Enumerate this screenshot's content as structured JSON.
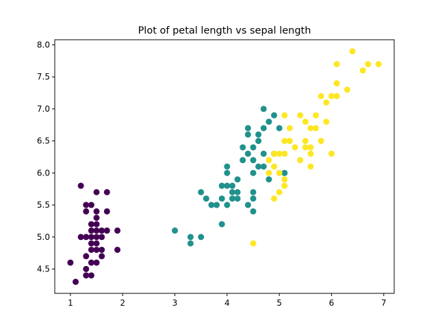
{
  "chart_data": {
    "type": "scatter",
    "title": "Plot of petal length vs sepal length",
    "xlabel": "",
    "ylabel": "",
    "xlim": [
      0.7,
      7.2
    ],
    "ylim": [
      4.12,
      8.08
    ],
    "xticks": [
      1,
      2,
      3,
      4,
      5,
      6,
      7
    ],
    "yticks": [
      4.5,
      5.0,
      5.5,
      6.0,
      6.5,
      7.0,
      7.5,
      8.0
    ],
    "xtick_labels": [
      "1",
      "2",
      "3",
      "4",
      "5",
      "6",
      "7"
    ],
    "ytick_labels": [
      "4.5",
      "5.0",
      "5.5",
      "6.0",
      "6.5",
      "7.0",
      "7.5",
      "8.0"
    ],
    "grid": false,
    "series": [
      {
        "color": "#440154",
        "points": [
          [
            1.0,
            4.6
          ],
          [
            1.1,
            4.3
          ],
          [
            1.2,
            5.8
          ],
          [
            1.2,
            5.0
          ],
          [
            1.3,
            5.5
          ],
          [
            1.3,
            5.4
          ],
          [
            1.3,
            5.0
          ],
          [
            1.3,
            4.7
          ],
          [
            1.3,
            4.5
          ],
          [
            1.3,
            4.4
          ],
          [
            1.4,
            5.5
          ],
          [
            1.4,
            5.2
          ],
          [
            1.4,
            5.1
          ],
          [
            1.4,
            5.0
          ],
          [
            1.4,
            4.9
          ],
          [
            1.4,
            4.8
          ],
          [
            1.4,
            4.6
          ],
          [
            1.4,
            4.4
          ],
          [
            1.5,
            5.7
          ],
          [
            1.5,
            5.4
          ],
          [
            1.5,
            5.3
          ],
          [
            1.5,
            5.2
          ],
          [
            1.5,
            5.1
          ],
          [
            1.5,
            5.0
          ],
          [
            1.5,
            4.9
          ],
          [
            1.5,
            4.8
          ],
          [
            1.5,
            4.6
          ],
          [
            1.6,
            5.1
          ],
          [
            1.6,
            5.0
          ],
          [
            1.6,
            4.8
          ],
          [
            1.6,
            4.7
          ],
          [
            1.7,
            5.7
          ],
          [
            1.7,
            5.4
          ],
          [
            1.7,
            5.1
          ],
          [
            1.9,
            5.1
          ],
          [
            1.9,
            4.8
          ]
        ]
      },
      {
        "color": "#21918c",
        "points": [
          [
            3.0,
            5.1
          ],
          [
            3.3,
            5.0
          ],
          [
            3.3,
            4.9
          ],
          [
            3.5,
            5.7
          ],
          [
            3.5,
            5.0
          ],
          [
            3.6,
            5.6
          ],
          [
            3.7,
            5.5
          ],
          [
            3.8,
            5.5
          ],
          [
            3.9,
            5.8
          ],
          [
            3.9,
            5.6
          ],
          [
            3.9,
            5.2
          ],
          [
            4.0,
            6.1
          ],
          [
            4.0,
            6.0
          ],
          [
            4.0,
            5.8
          ],
          [
            4.0,
            5.5
          ],
          [
            4.1,
            5.8
          ],
          [
            4.1,
            5.7
          ],
          [
            4.1,
            5.6
          ],
          [
            4.2,
            5.9
          ],
          [
            4.2,
            5.7
          ],
          [
            4.2,
            5.6
          ],
          [
            4.3,
            6.4
          ],
          [
            4.3,
            6.2
          ],
          [
            4.4,
            6.7
          ],
          [
            4.4,
            6.6
          ],
          [
            4.4,
            6.3
          ],
          [
            4.4,
            5.5
          ],
          [
            4.5,
            6.4
          ],
          [
            4.5,
            6.2
          ],
          [
            4.5,
            6.0
          ],
          [
            4.5,
            5.7
          ],
          [
            4.5,
            5.6
          ],
          [
            4.5,
            5.4
          ],
          [
            4.6,
            6.6
          ],
          [
            4.6,
            6.5
          ],
          [
            4.6,
            6.1
          ],
          [
            4.7,
            7.0
          ],
          [
            4.7,
            6.7
          ],
          [
            4.7,
            6.3
          ],
          [
            4.7,
            6.1
          ],
          [
            4.8,
            6.8
          ],
          [
            4.8,
            5.9
          ],
          [
            4.9,
            6.9
          ],
          [
            4.9,
            6.3
          ],
          [
            5.0,
            6.7
          ],
          [
            5.1,
            6.0
          ]
        ]
      },
      {
        "color": "#fde725",
        "points": [
          [
            4.5,
            4.9
          ],
          [
            4.8,
            6.2
          ],
          [
            4.8,
            6.0
          ],
          [
            4.9,
            6.3
          ],
          [
            4.9,
            6.1
          ],
          [
            4.9,
            5.6
          ],
          [
            5.0,
            6.3
          ],
          [
            5.0,
            6.0
          ],
          [
            5.0,
            5.7
          ],
          [
            5.1,
            6.9
          ],
          [
            5.1,
            6.5
          ],
          [
            5.1,
            6.3
          ],
          [
            5.1,
            5.9
          ],
          [
            5.1,
            5.8
          ],
          [
            5.2,
            6.7
          ],
          [
            5.2,
            6.5
          ],
          [
            5.3,
            6.4
          ],
          [
            5.4,
            6.9
          ],
          [
            5.4,
            6.2
          ],
          [
            5.5,
            6.8
          ],
          [
            5.5,
            6.5
          ],
          [
            5.5,
            6.4
          ],
          [
            5.6,
            6.7
          ],
          [
            5.6,
            6.4
          ],
          [
            5.6,
            6.3
          ],
          [
            5.6,
            6.1
          ],
          [
            5.7,
            6.9
          ],
          [
            5.7,
            6.7
          ],
          [
            5.8,
            7.2
          ],
          [
            5.8,
            6.5
          ],
          [
            5.9,
            7.1
          ],
          [
            5.9,
            6.8
          ],
          [
            6.0,
            7.2
          ],
          [
            6.0,
            6.3
          ],
          [
            6.1,
            7.7
          ],
          [
            6.1,
            7.4
          ],
          [
            6.1,
            7.2
          ],
          [
            6.3,
            7.3
          ],
          [
            6.4,
            7.9
          ],
          [
            6.6,
            7.6
          ],
          [
            6.7,
            7.7
          ],
          [
            6.9,
            7.7
          ]
        ]
      }
    ]
  }
}
